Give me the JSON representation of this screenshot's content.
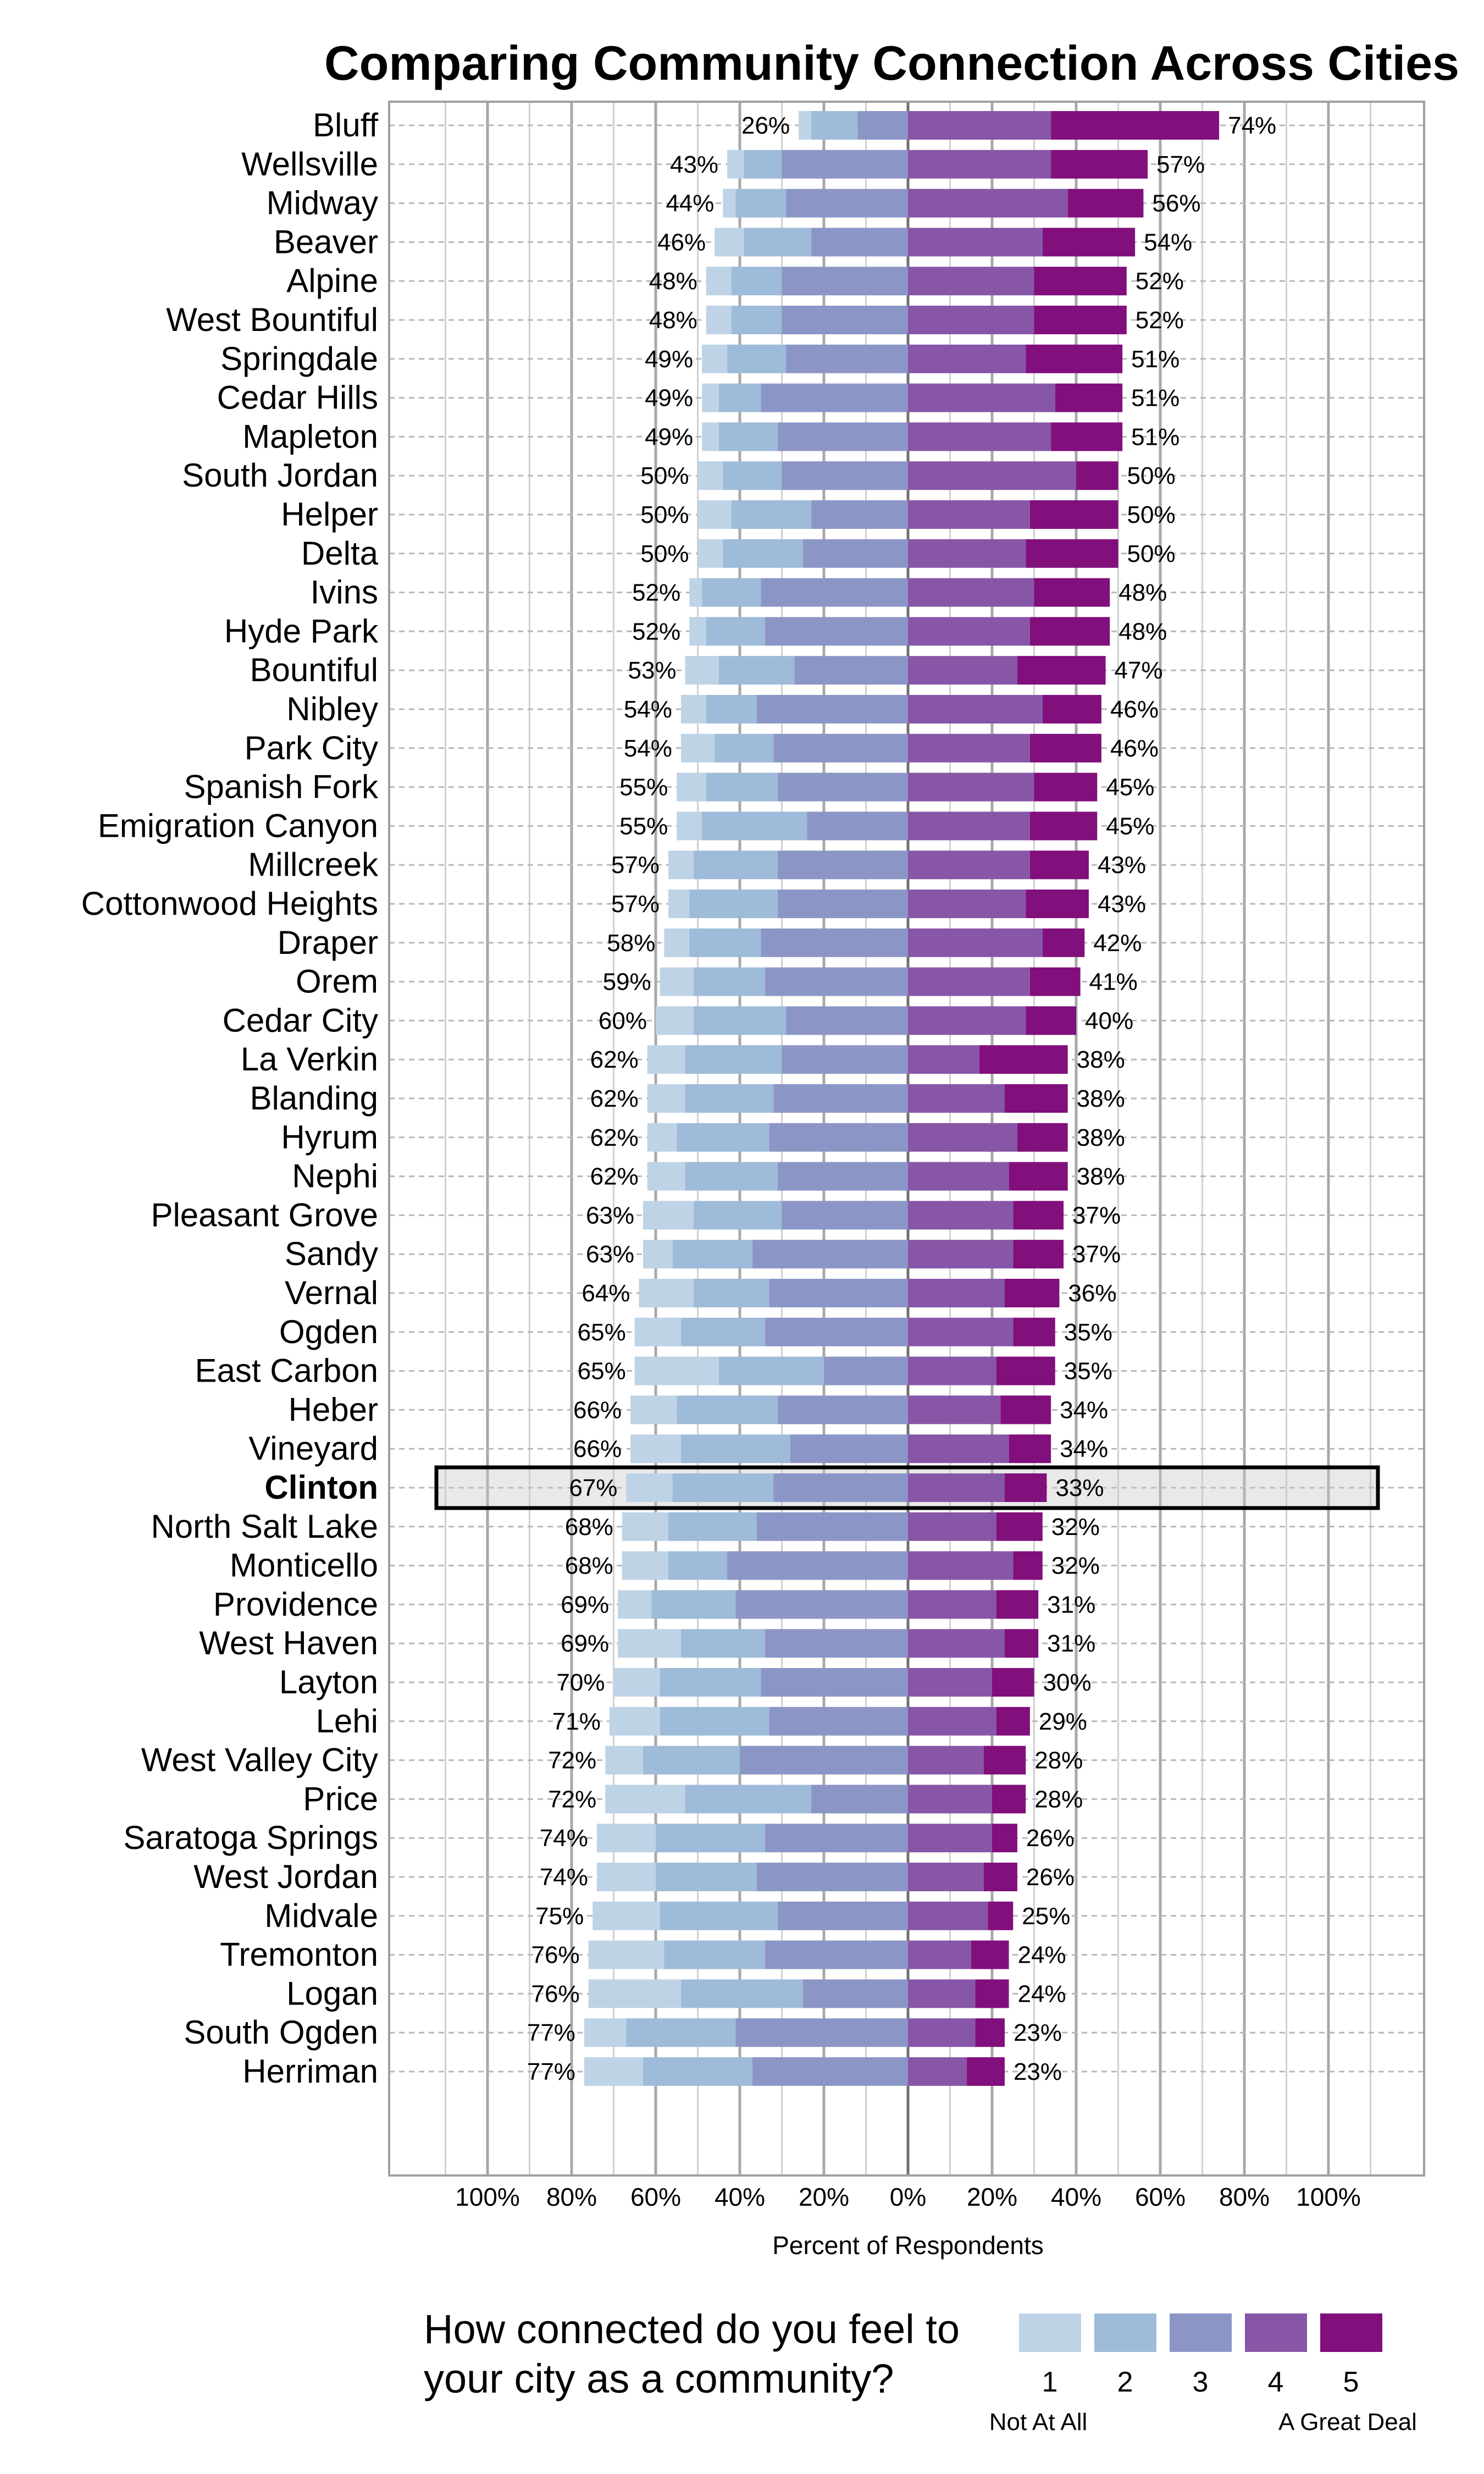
{
  "chart_data": {
    "type": "bar",
    "orientation": "horizontal-diverging-stacked",
    "title": "Comparing Community Connection Across Cities",
    "xlabel": "Percent of Respondents",
    "xlim": [
      -100,
      100
    ],
    "x_ticks": [
      "100%",
      "80%",
      "60%",
      "40%",
      "20%",
      "0%",
      "20%",
      "40%",
      "60%",
      "80%",
      "100%"
    ],
    "grid": true,
    "highlighted": "Clinton",
    "legend": {
      "title_lines": [
        "How connected do you feel to",
        "your city as a community?"
      ],
      "placement": "bottom",
      "levels": [
        "1",
        "2",
        "3",
        "4",
        "5"
      ],
      "low_label": "Not At All",
      "high_label": "A Great Deal",
      "colors": [
        "#bfd3e6",
        "#9ebbd9",
        "#8c96c6",
        "#8856a7",
        "#810f7c"
      ]
    },
    "cities": [
      {
        "name": "Bluff",
        "values": [
          3,
          11,
          12,
          34,
          40
        ],
        "left": "26%",
        "right": "74%"
      },
      {
        "name": "Wellsville",
        "values": [
          4,
          9,
          30,
          34,
          23
        ],
        "left": "43%",
        "right": "57%"
      },
      {
        "name": "Midway",
        "values": [
          3,
          12,
          29,
          38,
          18
        ],
        "left": "44%",
        "right": "56%"
      },
      {
        "name": "Beaver",
        "values": [
          7,
          16,
          23,
          32,
          22
        ],
        "left": "46%",
        "right": "54%"
      },
      {
        "name": "Alpine",
        "values": [
          6,
          12,
          30,
          30,
          22
        ],
        "left": "48%",
        "right": "52%"
      },
      {
        "name": "West Bountiful",
        "values": [
          6,
          12,
          30,
          30,
          22
        ],
        "left": "48%",
        "right": "52%"
      },
      {
        "name": "Springdale",
        "values": [
          6,
          14,
          29,
          28,
          23
        ],
        "left": "49%",
        "right": "51%"
      },
      {
        "name": "Cedar Hills",
        "values": [
          4,
          10,
          35,
          35,
          16
        ],
        "left": "49%",
        "right": "51%"
      },
      {
        "name": "Mapleton",
        "values": [
          4,
          14,
          31,
          34,
          17
        ],
        "left": "49%",
        "right": "51%"
      },
      {
        "name": "South Jordan",
        "values": [
          6,
          14,
          30,
          40,
          10
        ],
        "left": "50%",
        "right": "50%"
      },
      {
        "name": "Helper",
        "values": [
          8,
          19,
          23,
          29,
          21
        ],
        "left": "50%",
        "right": "50%"
      },
      {
        "name": "Delta",
        "values": [
          6,
          19,
          25,
          28,
          22
        ],
        "left": "50%",
        "right": "50%"
      },
      {
        "name": "Ivins",
        "values": [
          3,
          14,
          35,
          30,
          18
        ],
        "left": "52%",
        "right": "48%"
      },
      {
        "name": "Hyde Park",
        "values": [
          4,
          14,
          34,
          29,
          19
        ],
        "left": "52%",
        "right": "48%"
      },
      {
        "name": "Bountiful",
        "values": [
          8,
          18,
          27,
          26,
          21
        ],
        "left": "53%",
        "right": "47%"
      },
      {
        "name": "Nibley",
        "values": [
          6,
          12,
          36,
          32,
          14
        ],
        "left": "54%",
        "right": "46%"
      },
      {
        "name": "Park City",
        "values": [
          8,
          14,
          32,
          29,
          17
        ],
        "left": "54%",
        "right": "46%"
      },
      {
        "name": "Spanish Fork",
        "values": [
          7,
          17,
          31,
          30,
          15
        ],
        "left": "55%",
        "right": "45%"
      },
      {
        "name": "Emigration Canyon",
        "values": [
          6,
          25,
          24,
          29,
          16
        ],
        "left": "55%",
        "right": "45%"
      },
      {
        "name": "Millcreek",
        "values": [
          6,
          20,
          31,
          29,
          14
        ],
        "left": "57%",
        "right": "43%"
      },
      {
        "name": "Cottonwood Heights",
        "values": [
          5,
          21,
          31,
          28,
          15
        ],
        "left": "57%",
        "right": "43%"
      },
      {
        "name": "Draper",
        "values": [
          6,
          17,
          35,
          32,
          10
        ],
        "left": "58%",
        "right": "42%"
      },
      {
        "name": "Orem",
        "values": [
          8,
          17,
          34,
          29,
          12
        ],
        "left": "59%",
        "right": "41%"
      },
      {
        "name": "Cedar City",
        "values": [
          9,
          22,
          29,
          28,
          12
        ],
        "left": "60%",
        "right": "40%"
      },
      {
        "name": "La Verkin",
        "values": [
          9,
          23,
          30,
          17,
          21
        ],
        "left": "62%",
        "right": "38%"
      },
      {
        "name": "Blanding",
        "values": [
          9,
          21,
          32,
          23,
          15
        ],
        "left": "62%",
        "right": "38%"
      },
      {
        "name": "Hyrum",
        "values": [
          7,
          22,
          33,
          26,
          12
        ],
        "left": "62%",
        "right": "38%"
      },
      {
        "name": "Nephi",
        "values": [
          9,
          22,
          31,
          24,
          14
        ],
        "left": "62%",
        "right": "38%"
      },
      {
        "name": "Pleasant Grove",
        "values": [
          12,
          21,
          30,
          25,
          12
        ],
        "left": "63%",
        "right": "37%"
      },
      {
        "name": "Sandy",
        "values": [
          7,
          19,
          37,
          25,
          12
        ],
        "left": "63%",
        "right": "37%"
      },
      {
        "name": "Vernal",
        "values": [
          13,
          18,
          33,
          23,
          13
        ],
        "left": "64%",
        "right": "36%"
      },
      {
        "name": "Ogden",
        "values": [
          11,
          20,
          34,
          25,
          10
        ],
        "left": "65%",
        "right": "35%"
      },
      {
        "name": "East Carbon",
        "values": [
          20,
          25,
          20,
          21,
          14
        ],
        "left": "65%",
        "right": "35%"
      },
      {
        "name": "Heber",
        "values": [
          11,
          24,
          31,
          22,
          12
        ],
        "left": "66%",
        "right": "34%"
      },
      {
        "name": "Vineyard",
        "values": [
          12,
          26,
          28,
          24,
          10
        ],
        "left": "66%",
        "right": "34%"
      },
      {
        "name": "Clinton",
        "values": [
          11,
          24,
          32,
          23,
          10
        ],
        "left": "67%",
        "right": "33%"
      },
      {
        "name": "North Salt Lake",
        "values": [
          11,
          21,
          36,
          21,
          11
        ],
        "left": "68%",
        "right": "32%"
      },
      {
        "name": "Monticello",
        "values": [
          11,
          14,
          43,
          25,
          7
        ],
        "left": "68%",
        "right": "32%"
      },
      {
        "name": "Providence",
        "values": [
          8,
          20,
          41,
          21,
          10
        ],
        "left": "69%",
        "right": "31%"
      },
      {
        "name": "West Haven",
        "values": [
          15,
          20,
          34,
          23,
          8
        ],
        "left": "69%",
        "right": "31%"
      },
      {
        "name": "Layton",
        "values": [
          11,
          24,
          35,
          20,
          10
        ],
        "left": "70%",
        "right": "30%"
      },
      {
        "name": "Lehi",
        "values": [
          12,
          26,
          33,
          21,
          8
        ],
        "left": "71%",
        "right": "29%"
      },
      {
        "name": "West Valley City",
        "values": [
          9,
          23,
          40,
          18,
          10
        ],
        "left": "72%",
        "right": "28%"
      },
      {
        "name": "Price",
        "values": [
          19,
          30,
          23,
          20,
          8
        ],
        "left": "72%",
        "right": "28%"
      },
      {
        "name": "Saratoga Springs",
        "values": [
          14,
          26,
          34,
          20,
          6
        ],
        "left": "74%",
        "right": "26%"
      },
      {
        "name": "West Jordan",
        "values": [
          14,
          24,
          36,
          18,
          8
        ],
        "left": "74%",
        "right": "26%"
      },
      {
        "name": "Midvale",
        "values": [
          16,
          28,
          31,
          19,
          6
        ],
        "left": "75%",
        "right": "25%"
      },
      {
        "name": "Tremonton",
        "values": [
          18,
          24,
          34,
          15,
          9
        ],
        "left": "76%",
        "right": "24%"
      },
      {
        "name": "Logan",
        "values": [
          22,
          29,
          25,
          16,
          8
        ],
        "left": "76%",
        "right": "24%"
      },
      {
        "name": "South Ogden",
        "values": [
          10,
          26,
          41,
          16,
          7
        ],
        "left": "77%",
        "right": "23%"
      },
      {
        "name": "Herriman",
        "values": [
          14,
          26,
          37,
          14,
          9
        ],
        "left": "77%",
        "right": "23%"
      }
    ]
  }
}
